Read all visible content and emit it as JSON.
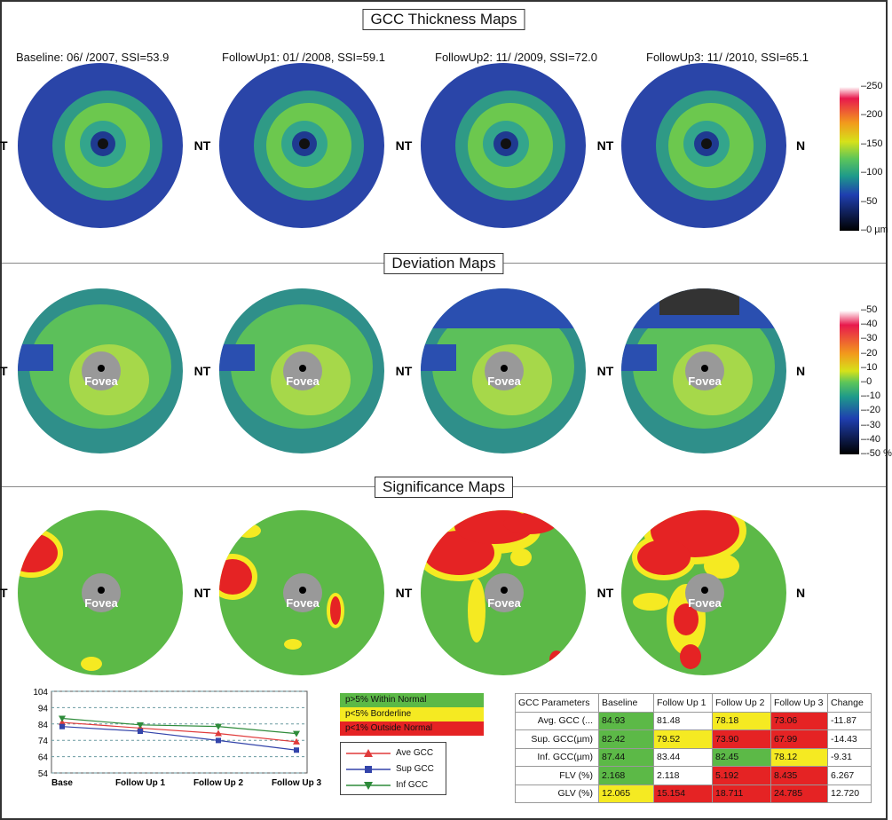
{
  "sections": {
    "thickness_title": "GCC Thickness Maps",
    "deviation_title": "Deviation Maps",
    "significance_title": "Significance Maps"
  },
  "scans": [
    {
      "label": "Baseline: 06/      /2007, SSI=53.9",
      "nasal": "NT"
    },
    {
      "label": "FollowUp1: 01/      /2008, SSI=59.1",
      "nasal": "NT"
    },
    {
      "label": "FollowUp2: 11/      /2009, SSI=72.0",
      "nasal": "NT"
    },
    {
      "label": "FollowUp3: 11/      /2010, SSI=65.1",
      "nasal": "N"
    }
  ],
  "left_edge_label": "T",
  "fovea_label": "Fovea",
  "thickness_scale": [
    "250",
    "200",
    "150",
    "100",
    "50",
    "0 µm"
  ],
  "deviation_scale": [
    "50",
    "40",
    "30",
    "20",
    "10",
    "0",
    "-10",
    "-20",
    "-30",
    "-40",
    "-50 %"
  ],
  "colors": {
    "within_normal": "#5cb947",
    "borderline": "#f5ea22",
    "outside_normal": "#e52324",
    "ave_series": "#e03a3a",
    "sup_series": "#3344aa",
    "inf_series": "#2e8b3a"
  },
  "significance_legend": [
    {
      "label": "p>5% Within Normal",
      "color": "#5cb947"
    },
    {
      "label": "p<5% Borderline",
      "color": "#f5ea22"
    },
    {
      "label": "p<1% Outside Normal",
      "color": "#e52324"
    }
  ],
  "chart_data": {
    "type": "line",
    "categories": [
      "Base",
      "Follow Up 1",
      "Follow Up 2",
      "Follow Up 3"
    ],
    "ylim": [
      54,
      104
    ],
    "yticks": [
      "104",
      "94",
      "84",
      "74",
      "64",
      "54"
    ],
    "grid": true,
    "series": [
      {
        "name": "Ave GCC",
        "values": [
          84.93,
          81.48,
          78.18,
          73.06
        ],
        "marker": "triangle-up",
        "color": "#e03a3a"
      },
      {
        "name": "Sup GCC",
        "values": [
          82.42,
          79.52,
          73.9,
          67.99
        ],
        "marker": "square",
        "color": "#3344aa"
      },
      {
        "name": "Inf GCC",
        "values": [
          87.44,
          83.44,
          82.45,
          78.12
        ],
        "marker": "triangle-down",
        "color": "#2e8b3a"
      }
    ]
  },
  "gcc_table": {
    "headers": [
      "GCC Parameters",
      "Baseline",
      "Follow Up 1",
      "Follow Up 2",
      "Follow Up 3",
      "Change"
    ],
    "rows": [
      {
        "label": "Avg. GCC (...",
        "cells": [
          [
            "84.93",
            "g"
          ],
          [
            "81.48",
            "w"
          ],
          [
            "78.18",
            "y"
          ],
          [
            "73.06",
            "r"
          ]
        ],
        "change": "-11.87"
      },
      {
        "label": "Sup. GCC(µm)",
        "cells": [
          [
            "82.42",
            "g"
          ],
          [
            "79.52",
            "y"
          ],
          [
            "73.90",
            "r"
          ],
          [
            "67.99",
            "r"
          ]
        ],
        "change": "-14.43"
      },
      {
        "label": "Inf. GCC(µm)",
        "cells": [
          [
            "87.44",
            "g"
          ],
          [
            "83.44",
            "w"
          ],
          [
            "82.45",
            "g"
          ],
          [
            "78.12",
            "y"
          ]
        ],
        "change": "-9.31"
      },
      {
        "label": "FLV (%)",
        "cells": [
          [
            "2.168",
            "g"
          ],
          [
            "2.118",
            "w"
          ],
          [
            "5.192",
            "r"
          ],
          [
            "8.435",
            "r"
          ]
        ],
        "change": "6.267"
      },
      {
        "label": "GLV (%)",
        "cells": [
          [
            "12.065",
            "y"
          ],
          [
            "15.154",
            "r"
          ],
          [
            "18.711",
            "r"
          ],
          [
            "24.785",
            "r"
          ]
        ],
        "change": "12.720"
      }
    ]
  }
}
